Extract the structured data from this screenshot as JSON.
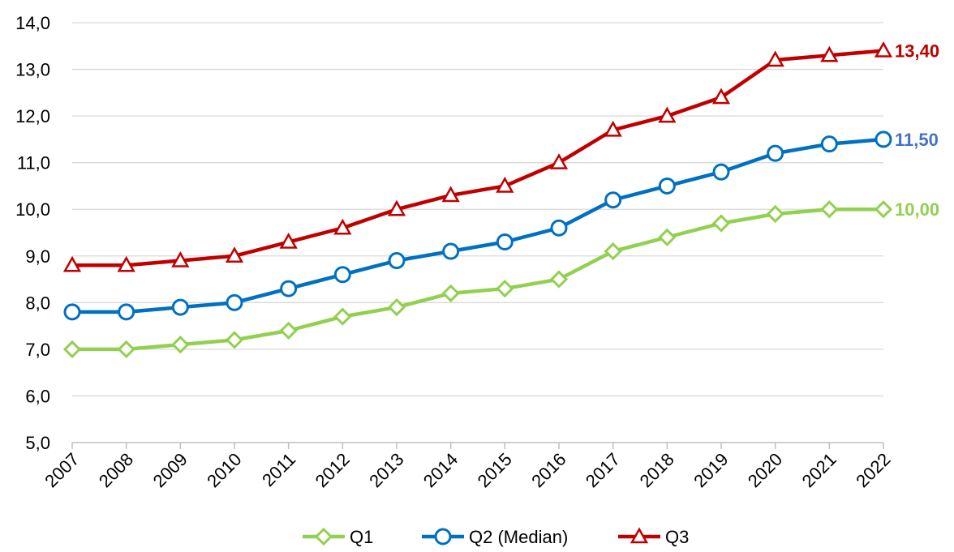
{
  "chart_data": {
    "type": "line",
    "title": "",
    "xlabel": "",
    "ylabel": "",
    "x": [
      "2007",
      "2008",
      "2009",
      "2010",
      "2011",
      "2012",
      "2013",
      "2014",
      "2015",
      "2016",
      "2017",
      "2018",
      "2019",
      "2020",
      "2021",
      "2022"
    ],
    "ylim": [
      5.0,
      14.0
    ],
    "yticks": [
      "5,0",
      "6,0",
      "7,0",
      "8,0",
      "9,0",
      "10,0",
      "11,0",
      "12,0",
      "13,0",
      "14,0"
    ],
    "grid": "horizontal",
    "legend_position": "bottom",
    "series": [
      {
        "name": "Q1",
        "color": "#92d050",
        "marker": "diamond",
        "values": [
          7.0,
          7.0,
          7.1,
          7.2,
          7.4,
          7.7,
          7.9,
          8.2,
          8.3,
          8.5,
          9.1,
          9.4,
          9.7,
          9.9,
          10.0,
          10.0
        ],
        "end_label": "10,00"
      },
      {
        "name": "Q2 (Median)",
        "color": "#0070c0",
        "label_color": "#4472c4",
        "marker": "circle",
        "values": [
          7.8,
          7.8,
          7.9,
          8.0,
          8.3,
          8.6,
          8.9,
          9.1,
          9.3,
          9.6,
          10.2,
          10.5,
          10.8,
          11.2,
          11.4,
          11.5
        ],
        "end_label": "11,50"
      },
      {
        "name": "Q3",
        "color": "#c00000",
        "marker": "triangle",
        "values": [
          8.8,
          8.8,
          8.9,
          9.0,
          9.3,
          9.6,
          10.0,
          10.3,
          10.5,
          11.0,
          11.7,
          12.0,
          12.4,
          13.2,
          13.3,
          13.4
        ],
        "end_label": "13,40"
      }
    ]
  }
}
